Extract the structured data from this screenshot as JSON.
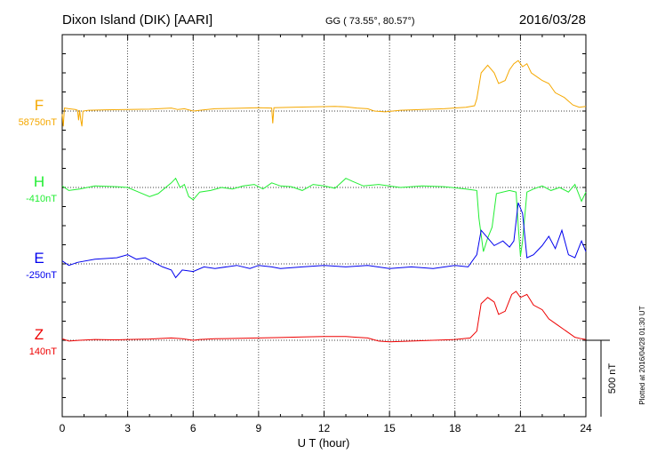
{
  "header": {
    "station": "Dixon Island (DIK)  [AARI]",
    "coords": "GG ( 73.55°,  80.57°)",
    "date": "2016/03/28"
  },
  "footer": {
    "plotted": "Plotted at 2016/04/28 01:30 UT"
  },
  "chart_data": {
    "type": "line",
    "xlabel": "U T (hour)",
    "xlim": [
      0,
      24
    ],
    "xticks": [
      0,
      3,
      6,
      9,
      12,
      15,
      18,
      21,
      24
    ],
    "scale_bar": {
      "label": "500 nT",
      "value": 500
    },
    "series": [
      {
        "name": "F",
        "baseline_label": "58750nT",
        "color": "#f5a800",
        "points": [
          [
            0,
            -20
          ],
          [
            0.05,
            -100
          ],
          [
            0.1,
            20
          ],
          [
            0.3,
            15
          ],
          [
            0.6,
            10
          ],
          [
            0.7,
            5
          ],
          [
            0.75,
            -60
          ],
          [
            0.8,
            5
          ],
          [
            0.85,
            -60
          ],
          [
            0.9,
            -100
          ],
          [
            0.95,
            0
          ],
          [
            1.2,
            5
          ],
          [
            2,
            8
          ],
          [
            3,
            10
          ],
          [
            4,
            12
          ],
          [
            5,
            20
          ],
          [
            5.3,
            10
          ],
          [
            5.6,
            15
          ],
          [
            6,
            0
          ],
          [
            6.5,
            8
          ],
          [
            7,
            15
          ],
          [
            8,
            18
          ],
          [
            9,
            22
          ],
          [
            9.6,
            20
          ],
          [
            9.65,
            -80
          ],
          [
            9.7,
            22
          ],
          [
            10.5,
            25
          ],
          [
            11.5,
            28
          ],
          [
            12.5,
            30
          ],
          [
            13,
            28
          ],
          [
            13.5,
            20
          ],
          [
            14,
            15
          ],
          [
            14.3,
            0
          ],
          [
            14.8,
            -5
          ],
          [
            15.5,
            5
          ],
          [
            16.5,
            10
          ],
          [
            17.5,
            15
          ],
          [
            18.5,
            25
          ],
          [
            18.9,
            35
          ],
          [
            19,
            80
          ],
          [
            19.2,
            250
          ],
          [
            19.5,
            300
          ],
          [
            19.8,
            250
          ],
          [
            20,
            180
          ],
          [
            20.3,
            200
          ],
          [
            20.5,
            270
          ],
          [
            20.7,
            310
          ],
          [
            20.9,
            330
          ],
          [
            21.1,
            290
          ],
          [
            21.3,
            310
          ],
          [
            21.5,
            250
          ],
          [
            21.8,
            220
          ],
          [
            22,
            200
          ],
          [
            22.3,
            180
          ],
          [
            22.6,
            120
          ],
          [
            23,
            90
          ],
          [
            23.4,
            40
          ],
          [
            23.7,
            25
          ],
          [
            24,
            30
          ]
        ]
      },
      {
        "name": "H",
        "baseline_label": "-410nT",
        "color": "#22ee33",
        "points": [
          [
            0,
            10
          ],
          [
            0.3,
            -20
          ],
          [
            0.8,
            -10
          ],
          [
            1.5,
            10
          ],
          [
            2.5,
            5
          ],
          [
            3,
            0
          ],
          [
            3.5,
            -30
          ],
          [
            4,
            -60
          ],
          [
            4.4,
            -40
          ],
          [
            5,
            30
          ],
          [
            5.2,
            60
          ],
          [
            5.4,
            0
          ],
          [
            5.6,
            20
          ],
          [
            5.8,
            -60
          ],
          [
            6,
            -80
          ],
          [
            6.3,
            -30
          ],
          [
            6.8,
            -20
          ],
          [
            7.3,
            0
          ],
          [
            7.8,
            -10
          ],
          [
            8.3,
            10
          ],
          [
            8.8,
            20
          ],
          [
            9.2,
            -10
          ],
          [
            9.6,
            30
          ],
          [
            10,
            10
          ],
          [
            10.5,
            5
          ],
          [
            11,
            -20
          ],
          [
            11.5,
            20
          ],
          [
            12,
            10
          ],
          [
            12.5,
            -5
          ],
          [
            13,
            60
          ],
          [
            13.3,
            40
          ],
          [
            13.8,
            10
          ],
          [
            14.5,
            20
          ],
          [
            15.5,
            0
          ],
          [
            16.5,
            10
          ],
          [
            17.5,
            5
          ],
          [
            18.5,
            -10
          ],
          [
            19,
            -20
          ],
          [
            19.1,
            -200
          ],
          [
            19.3,
            -420
          ],
          [
            19.5,
            -330
          ],
          [
            19.7,
            -260
          ],
          [
            19.9,
            -40
          ],
          [
            20.5,
            -20
          ],
          [
            20.8,
            -30
          ],
          [
            20.9,
            -250
          ],
          [
            21,
            -450
          ],
          [
            21.1,
            -350
          ],
          [
            21.3,
            -30
          ],
          [
            21.6,
            -10
          ],
          [
            22,
            10
          ],
          [
            22.4,
            -20
          ],
          [
            22.8,
            0
          ],
          [
            23.2,
            -30
          ],
          [
            23.5,
            20
          ],
          [
            23.8,
            -90
          ],
          [
            24,
            -30
          ]
        ]
      },
      {
        "name": "E",
        "baseline_label": "-250nT",
        "color": "#0000ee",
        "points": [
          [
            0,
            20
          ],
          [
            0.3,
            -10
          ],
          [
            0.7,
            10
          ],
          [
            1.5,
            30
          ],
          [
            2.5,
            40
          ],
          [
            3,
            60
          ],
          [
            3.4,
            30
          ],
          [
            3.8,
            40
          ],
          [
            4.2,
            10
          ],
          [
            4.6,
            -20
          ],
          [
            5,
            -40
          ],
          [
            5.2,
            -90
          ],
          [
            5.5,
            -40
          ],
          [
            6,
            -50
          ],
          [
            6.5,
            -20
          ],
          [
            7,
            -30
          ],
          [
            8,
            -10
          ],
          [
            8.6,
            -30
          ],
          [
            9,
            -10
          ],
          [
            9.6,
            -20
          ],
          [
            10,
            -30
          ],
          [
            11,
            -20
          ],
          [
            12,
            -10
          ],
          [
            13,
            -20
          ],
          [
            14,
            -10
          ],
          [
            15,
            -30
          ],
          [
            16,
            -20
          ],
          [
            17,
            -30
          ],
          [
            18,
            -10
          ],
          [
            18.6,
            -20
          ],
          [
            19,
            60
          ],
          [
            19.2,
            220
          ],
          [
            19.5,
            170
          ],
          [
            19.8,
            120
          ],
          [
            20.2,
            150
          ],
          [
            20.5,
            110
          ],
          [
            20.7,
            150
          ],
          [
            20.9,
            400
          ],
          [
            21.1,
            330
          ],
          [
            21.3,
            40
          ],
          [
            21.6,
            60
          ],
          [
            22,
            120
          ],
          [
            22.3,
            180
          ],
          [
            22.6,
            100
          ],
          [
            22.9,
            220
          ],
          [
            23.2,
            60
          ],
          [
            23.5,
            40
          ],
          [
            23.8,
            150
          ],
          [
            24,
            80
          ]
        ]
      },
      {
        "name": "Z",
        "baseline_label": "140nT",
        "color": "#ee0000",
        "points": [
          [
            0,
            10
          ],
          [
            0.3,
            -5
          ],
          [
            0.8,
            0
          ],
          [
            1.5,
            5
          ],
          [
            2.5,
            3
          ],
          [
            3,
            5
          ],
          [
            4,
            8
          ],
          [
            5,
            15
          ],
          [
            5.5,
            10
          ],
          [
            6,
            0
          ],
          [
            6.3,
            5
          ],
          [
            7,
            10
          ],
          [
            8,
            12
          ],
          [
            9,
            15
          ],
          [
            10,
            18
          ],
          [
            11,
            22
          ],
          [
            12,
            25
          ],
          [
            13,
            25
          ],
          [
            13.5,
            20
          ],
          [
            14,
            15
          ],
          [
            14.5,
            -5
          ],
          [
            15,
            -10
          ],
          [
            16,
            -5
          ],
          [
            17,
            0
          ],
          [
            18,
            5
          ],
          [
            18.7,
            15
          ],
          [
            19,
            60
          ],
          [
            19.2,
            240
          ],
          [
            19.5,
            280
          ],
          [
            19.8,
            250
          ],
          [
            20,
            170
          ],
          [
            20.3,
            190
          ],
          [
            20.6,
            300
          ],
          [
            20.8,
            320
          ],
          [
            21,
            280
          ],
          [
            21.3,
            300
          ],
          [
            21.6,
            230
          ],
          [
            22,
            200
          ],
          [
            22.3,
            140
          ],
          [
            22.7,
            100
          ],
          [
            23.1,
            60
          ],
          [
            23.5,
            20
          ],
          [
            23.8,
            10
          ],
          [
            24,
            5
          ]
        ]
      }
    ]
  }
}
